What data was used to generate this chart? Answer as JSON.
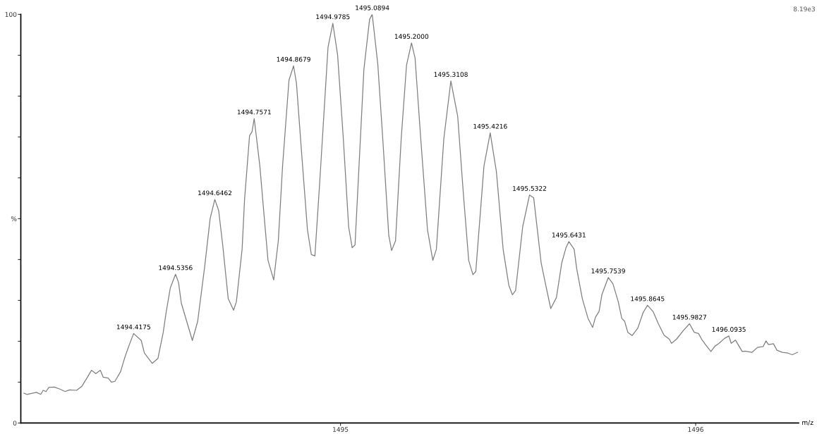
{
  "chart_data": {
    "type": "line",
    "xlabel": "m/z",
    "xlim": [
      1494.1,
      1496.29
    ],
    "xticks": [
      1495,
      1496
    ],
    "ylim": [
      0,
      100
    ],
    "yticks": [
      0,
      {
        "value": 10,
        "label": null
      },
      {
        "value": 20,
        "label": null
      },
      {
        "value": 30,
        "label": null
      },
      {
        "value": 40,
        "label": null
      },
      {
        "value": 50,
        "label": "%"
      },
      {
        "value": 60,
        "label": null
      },
      {
        "value": 70,
        "label": null
      },
      {
        "value": 80,
        "label": null
      },
      {
        "value": 90,
        "label": null
      },
      100
    ],
    "grid": false,
    "marker": "none",
    "line_style": "solid",
    "series": [
      {
        "color": "#7f7f7f",
        "x": [
          1494.109,
          1494.117,
          1494.144,
          1494.156,
          1494.163,
          1494.171,
          1494.179,
          1494.194,
          1494.21,
          1494.225,
          1494.237,
          1494.257,
          1494.272,
          1494.284,
          1494.299,
          1494.311,
          1494.324,
          1494.332,
          1494.346,
          1494.355,
          1494.365,
          1494.381,
          1494.393,
          1494.404,
          1494.4175,
          1494.439,
          1494.448,
          1494.47,
          1494.486,
          1494.494,
          1494.501,
          1494.509,
          1494.521,
          1494.5356,
          1494.544,
          1494.552,
          1494.567,
          1494.583,
          1494.598,
          1494.618,
          1494.633,
          1494.6462,
          1494.657,
          1494.668,
          1494.684,
          1494.699,
          1494.707,
          1494.723,
          1494.73,
          1494.744,
          1494.751,
          1494.7571,
          1494.773,
          1494.785,
          1494.796,
          1494.812,
          1494.825,
          1494.837,
          1494.855,
          1494.8679,
          1494.876,
          1494.891,
          1494.907,
          1494.918,
          1494.928,
          1494.942,
          1494.965,
          1494.9785,
          1494.992,
          1495.008,
          1495.023,
          1495.033,
          1495.041,
          1495.066,
          1495.082,
          1495.0894,
          1495.105,
          1495.12,
          1495.136,
          1495.144,
          1495.155,
          1495.171,
          1495.186,
          1495.2,
          1495.21,
          1495.226,
          1495.245,
          1495.26,
          1495.27,
          1495.291,
          1495.3108,
          1495.33,
          1495.346,
          1495.361,
          1495.373,
          1495.381,
          1495.404,
          1495.4216,
          1495.439,
          1495.458,
          1495.474,
          1495.484,
          1495.493,
          1495.513,
          1495.5322,
          1495.544,
          1495.565,
          1495.578,
          1495.592,
          1495.608,
          1495.623,
          1495.635,
          1495.6431,
          1495.658,
          1495.665,
          1495.681,
          1495.697,
          1495.71,
          1495.718,
          1495.728,
          1495.736,
          1495.7539,
          1495.767,
          1495.782,
          1495.792,
          1495.8,
          1495.809,
          1495.821,
          1495.837,
          1495.852,
          1495.8645,
          1495.88,
          1495.895,
          1495.911,
          1495.926,
          1495.932,
          1495.946,
          1495.965,
          1495.9827,
          1495.996,
          1496.008,
          1496.019,
          1496.031,
          1496.043,
          1496.054,
          1496.066,
          1496.081,
          1496.0935,
          1496.1,
          1496.112,
          1496.131,
          1496.139,
          1496.159,
          1496.174,
          1496.19,
          1496.198,
          1496.205,
          1496.219,
          1496.229,
          1496.244,
          1496.26,
          1496.272,
          1496.287
        ],
        "values": [
          7.3,
          7.0,
          7.5,
          7.0,
          8.0,
          7.7,
          8.7,
          8.8,
          8.3,
          7.7,
          8.1,
          8.0,
          9.0,
          10.7,
          12.9,
          12.1,
          12.9,
          11.2,
          11.0,
          10.0,
          10.2,
          12.6,
          16.1,
          18.8,
          21.9,
          20.2,
          17.1,
          14.6,
          15.8,
          19.2,
          22.2,
          27.0,
          33.1,
          36.4,
          34.4,
          29.3,
          24.9,
          20.2,
          24.9,
          38.5,
          50.0,
          54.7,
          52.0,
          43.9,
          30.4,
          27.6,
          29.7,
          42.5,
          54.7,
          70.3,
          71.3,
          74.5,
          62.9,
          50.7,
          39.8,
          35.0,
          44.6,
          62.9,
          83.9,
          87.4,
          83.2,
          65.6,
          47.3,
          41.2,
          40.9,
          59.5,
          92.0,
          97.8,
          90.0,
          69.6,
          48.0,
          42.9,
          43.6,
          86.6,
          98.8,
          100,
          87.9,
          68.3,
          45.9,
          42.2,
          44.6,
          69.6,
          87.6,
          93.0,
          89.3,
          69.6,
          47.3,
          39.8,
          42.5,
          69.6,
          83.7,
          75.1,
          56.1,
          39.8,
          36.3,
          37.1,
          62.9,
          71.0,
          61.5,
          42.5,
          33.7,
          31.4,
          32.4,
          48.0,
          55.8,
          55.1,
          39.2,
          33.7,
          28.0,
          30.7,
          39.2,
          42.9,
          44.4,
          42.5,
          37.8,
          30.4,
          25.6,
          23.4,
          25.9,
          27.3,
          31.4,
          35.6,
          34.1,
          29.7,
          25.6,
          24.9,
          22.2,
          21.4,
          23.2,
          27.0,
          28.8,
          27.3,
          24.3,
          21.5,
          20.5,
          19.5,
          20.5,
          22.6,
          24.3,
          22.2,
          21.9,
          20.2,
          18.8,
          17.5,
          18.8,
          19.5,
          20.7,
          21.3,
          19.5,
          20.3,
          17.5,
          17.6,
          17.3,
          18.5,
          18.7,
          20.1,
          19.2,
          19.4,
          17.8,
          17.3,
          17.1,
          16.7,
          17.3
        ]
      }
    ],
    "annotations": [
      {
        "text": "1494.4175",
        "x": 1494.4175,
        "y": 21.9
      },
      {
        "text": "1494.5356",
        "x": 1494.5356,
        "y": 36.4
      },
      {
        "text": "1494.6462",
        "x": 1494.6462,
        "y": 54.7
      },
      {
        "text": "1494.7571",
        "x": 1494.7571,
        "y": 74.5
      },
      {
        "text": "1494.8679",
        "x": 1494.8679,
        "y": 87.4
      },
      {
        "text": "1494.9785",
        "x": 1494.9785,
        "y": 97.8
      },
      {
        "text": "1495.0894",
        "x": 1495.0894,
        "y": 100
      },
      {
        "text": "1495.2000",
        "x": 1495.2,
        "y": 93.0
      },
      {
        "text": "1495.3108",
        "x": 1495.3108,
        "y": 83.7
      },
      {
        "text": "1495.4216",
        "x": 1495.4216,
        "y": 71.0
      },
      {
        "text": "1495.5322",
        "x": 1495.5322,
        "y": 55.8
      },
      {
        "text": "1495.6431",
        "x": 1495.6431,
        "y": 44.4
      },
      {
        "text": "1495.7539",
        "x": 1495.7539,
        "y": 35.6
      },
      {
        "text": "1495.8645",
        "x": 1495.8645,
        "y": 28.8
      },
      {
        "text": "1495.9827",
        "x": 1495.9827,
        "y": 24.3
      },
      {
        "text": "1496.0935",
        "x": 1496.0935,
        "y": 21.3
      },
      "8.19e3"
    ]
  }
}
